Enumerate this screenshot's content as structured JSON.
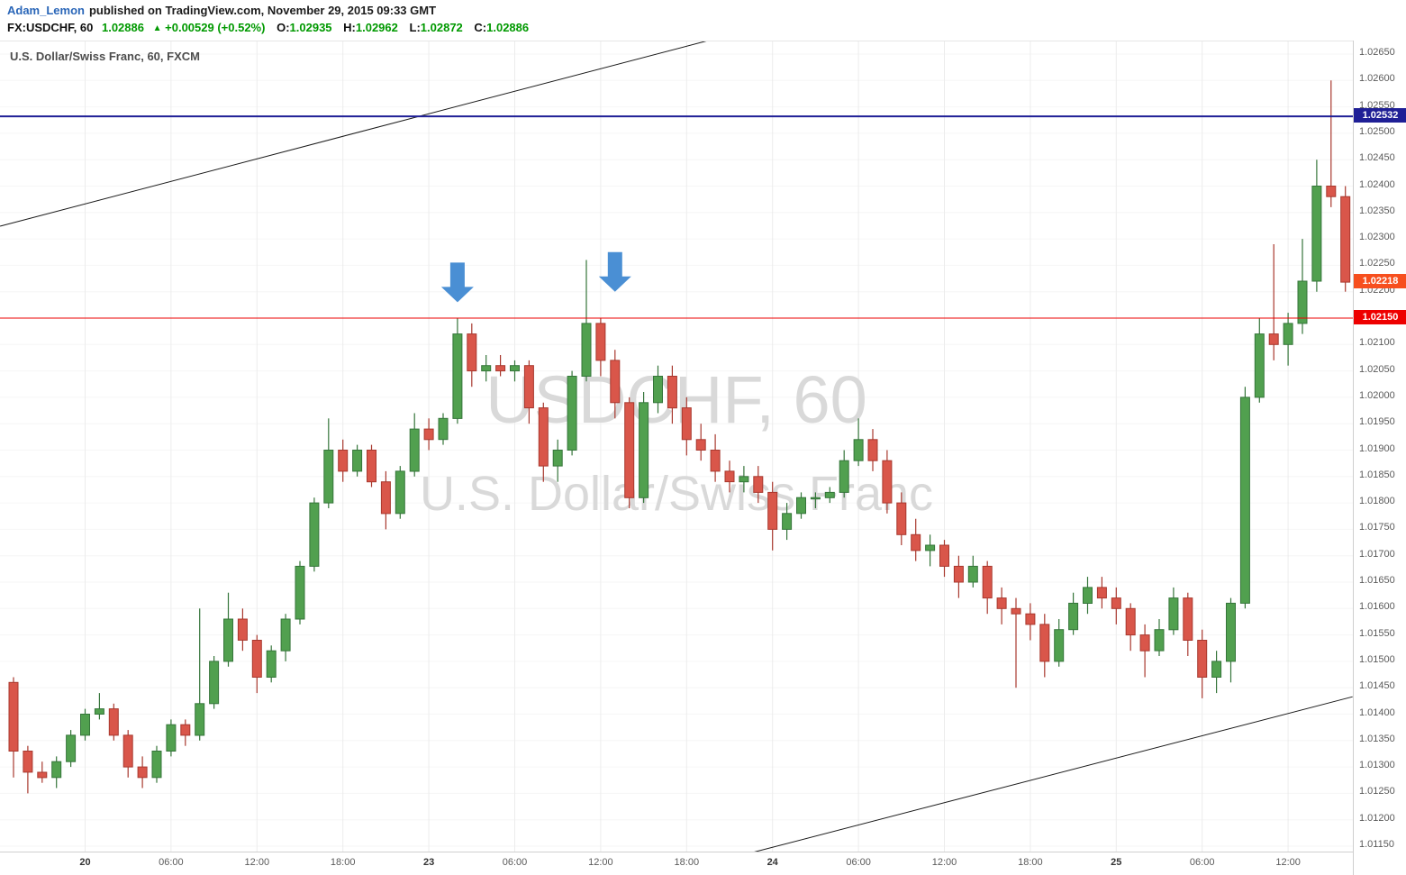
{
  "publish_bar": {
    "author": "Adam_Lemon",
    "suffix": "published on TradingView.com, November 29, 2015 09:33 GMT"
  },
  "quote_bar": {
    "symbol": "FX:USDCHF, 60",
    "last": "1.02886",
    "direction_icon": "▲",
    "change": "+0.00529 (+0.52%)",
    "ohlc": [
      {
        "label": "O:",
        "value": "1.02935"
      },
      {
        "label": "H:",
        "value": "1.02962"
      },
      {
        "label": "L:",
        "value": "1.02872"
      },
      {
        "label": "C:",
        "value": "1.02886"
      }
    ]
  },
  "chart": {
    "legend": "U.S. Dollar/Swiss Franc, 60, FXCM",
    "watermark_line1": "USDCHF, 60",
    "watermark_line2": "U.S. Dollar/Swiss Franc"
  },
  "chart_data": {
    "type": "candlestick",
    "symbol": "USDCHF",
    "timeframe_minutes": 60,
    "title": "U.S. Dollar/Swiss Franc, 60, FXCM",
    "y_axis": {
      "min": 1.0115,
      "max": 1.0265,
      "tick_step": 0.0005,
      "tick_labels": [
        "1.02650",
        "1.02600",
        "1.02550",
        "1.02500",
        "1.02450",
        "1.02400",
        "1.02350",
        "1.02300",
        "1.02250",
        "1.02200",
        "1.02150",
        "1.02100",
        "1.02050",
        "1.02000",
        "1.01950",
        "1.01900",
        "1.01850",
        "1.01800",
        "1.01750",
        "1.01700",
        "1.01650",
        "1.01600",
        "1.01550",
        "1.01500",
        "1.01450",
        "1.01400",
        "1.01350",
        "1.01300",
        "1.01250",
        "1.01200",
        "1.01150"
      ]
    },
    "x_ticks": [
      {
        "label": "20",
        "index": 5,
        "is_day": true
      },
      {
        "label": "06:00",
        "index": 11,
        "is_day": false
      },
      {
        "label": "12:00",
        "index": 17,
        "is_day": false
      },
      {
        "label": "18:00",
        "index": 23,
        "is_day": false
      },
      {
        "label": "23",
        "index": 29,
        "is_day": true
      },
      {
        "label": "06:00",
        "index": 35,
        "is_day": false
      },
      {
        "label": "12:00",
        "index": 41,
        "is_day": false
      },
      {
        "label": "18:00",
        "index": 47,
        "is_day": false
      },
      {
        "label": "24",
        "index": 53,
        "is_day": true
      },
      {
        "label": "06:00",
        "index": 59,
        "is_day": false
      },
      {
        "label": "12:00",
        "index": 65,
        "is_day": false
      },
      {
        "label": "18:00",
        "index": 71,
        "is_day": false
      },
      {
        "label": "25",
        "index": 77,
        "is_day": true
      },
      {
        "label": "06:00",
        "index": 83,
        "is_day": false
      },
      {
        "label": "12:00",
        "index": 89,
        "is_day": false
      }
    ],
    "candles": [
      [
        1.0146,
        1.0147,
        1.0128,
        1.0133
      ],
      [
        1.0133,
        1.0134,
        1.0125,
        1.0129
      ],
      [
        1.0129,
        1.0131,
        1.0127,
        1.0128
      ],
      [
        1.0128,
        1.0132,
        1.0126,
        1.0131
      ],
      [
        1.0131,
        1.0137,
        1.013,
        1.0136
      ],
      [
        1.0136,
        1.0141,
        1.0135,
        1.014
      ],
      [
        1.014,
        1.0144,
        1.0139,
        1.0141
      ],
      [
        1.0141,
        1.0142,
        1.0135,
        1.0136
      ],
      [
        1.0136,
        1.0137,
        1.0128,
        1.013
      ],
      [
        1.013,
        1.0132,
        1.0126,
        1.0128
      ],
      [
        1.0128,
        1.0134,
        1.0127,
        1.0133
      ],
      [
        1.0133,
        1.0139,
        1.0132,
        1.0138
      ],
      [
        1.0138,
        1.0139,
        1.0134,
        1.0136
      ],
      [
        1.0136,
        1.016,
        1.0135,
        1.0142
      ],
      [
        1.0142,
        1.0151,
        1.0141,
        1.015
      ],
      [
        1.015,
        1.0163,
        1.0149,
        1.0158
      ],
      [
        1.0158,
        1.016,
        1.0152,
        1.0154
      ],
      [
        1.0154,
        1.0155,
        1.0144,
        1.0147
      ],
      [
        1.0147,
        1.0153,
        1.0146,
        1.0152
      ],
      [
        1.0152,
        1.0159,
        1.015,
        1.0158
      ],
      [
        1.0158,
        1.0169,
        1.0157,
        1.0168
      ],
      [
        1.0168,
        1.0181,
        1.0167,
        1.018
      ],
      [
        1.018,
        1.0196,
        1.0179,
        1.019
      ],
      [
        1.019,
        1.0192,
        1.0184,
        1.0186
      ],
      [
        1.0186,
        1.0191,
        1.0185,
        1.019
      ],
      [
        1.019,
        1.0191,
        1.0183,
        1.0184
      ],
      [
        1.0184,
        1.0186,
        1.0175,
        1.0178
      ],
      [
        1.0178,
        1.0187,
        1.0177,
        1.0186
      ],
      [
        1.0186,
        1.0197,
        1.0185,
        1.0194
      ],
      [
        1.0194,
        1.0196,
        1.019,
        1.0192
      ],
      [
        1.0192,
        1.0197,
        1.0191,
        1.0196
      ],
      [
        1.0196,
        1.0215,
        1.0195,
        1.0212
      ],
      [
        1.0212,
        1.0214,
        1.0202,
        1.0205
      ],
      [
        1.0205,
        1.0208,
        1.0203,
        1.0206
      ],
      [
        1.0206,
        1.0208,
        1.0204,
        1.0205
      ],
      [
        1.0205,
        1.0207,
        1.0203,
        1.0206
      ],
      [
        1.0206,
        1.0207,
        1.0195,
        1.0198
      ],
      [
        1.0198,
        1.0199,
        1.0184,
        1.0187
      ],
      [
        1.0187,
        1.0192,
        1.0184,
        1.019
      ],
      [
        1.019,
        1.0205,
        1.0189,
        1.0204
      ],
      [
        1.0204,
        1.0226,
        1.0203,
        1.0214
      ],
      [
        1.0214,
        1.0215,
        1.0204,
        1.0207
      ],
      [
        1.0207,
        1.0209,
        1.0196,
        1.0199
      ],
      [
        1.0199,
        1.02,
        1.0179,
        1.0181
      ],
      [
        1.0181,
        1.0201,
        1.018,
        1.0199
      ],
      [
        1.0199,
        1.0206,
        1.0197,
        1.0204
      ],
      [
        1.0204,
        1.0206,
        1.0195,
        1.0198
      ],
      [
        1.0198,
        1.02,
        1.0189,
        1.0192
      ],
      [
        1.0192,
        1.0195,
        1.0188,
        1.019
      ],
      [
        1.019,
        1.0193,
        1.0184,
        1.0186
      ],
      [
        1.0186,
        1.0188,
        1.0182,
        1.0184
      ],
      [
        1.0184,
        1.0187,
        1.0182,
        1.0185
      ],
      [
        1.0185,
        1.0187,
        1.018,
        1.0182
      ],
      [
        1.0182,
        1.0184,
        1.0171,
        1.0175
      ],
      [
        1.0175,
        1.018,
        1.0173,
        1.0178
      ],
      [
        1.0178,
        1.0182,
        1.0177,
        1.0181
      ],
      [
        1.0181,
        1.0182,
        1.0179,
        1.0181
      ],
      [
        1.0181,
        1.0183,
        1.018,
        1.0182
      ],
      [
        1.0182,
        1.019,
        1.0181,
        1.0188
      ],
      [
        1.0188,
        1.0196,
        1.0187,
        1.0192
      ],
      [
        1.0192,
        1.0194,
        1.0186,
        1.0188
      ],
      [
        1.0188,
        1.019,
        1.0178,
        1.018
      ],
      [
        1.018,
        1.0182,
        1.0172,
        1.0174
      ],
      [
        1.0174,
        1.0177,
        1.0169,
        1.0171
      ],
      [
        1.0171,
        1.0174,
        1.0168,
        1.0172
      ],
      [
        1.0172,
        1.0173,
        1.0166,
        1.0168
      ],
      [
        1.0168,
        1.017,
        1.0162,
        1.0165
      ],
      [
        1.0165,
        1.017,
        1.0164,
        1.0168
      ],
      [
        1.0168,
        1.0169,
        1.0159,
        1.0162
      ],
      [
        1.0162,
        1.0164,
        1.0157,
        1.016
      ],
      [
        1.016,
        1.0162,
        1.0145,
        1.0159
      ],
      [
        1.0159,
        1.0161,
        1.0154,
        1.0157
      ],
      [
        1.0157,
        1.0159,
        1.0147,
        1.015
      ],
      [
        1.015,
        1.0158,
        1.0149,
        1.0156
      ],
      [
        1.0156,
        1.0163,
        1.0155,
        1.0161
      ],
      [
        1.0161,
        1.0166,
        1.0159,
        1.0164
      ],
      [
        1.0164,
        1.0166,
        1.016,
        1.0162
      ],
      [
        1.0162,
        1.0164,
        1.0157,
        1.016
      ],
      [
        1.016,
        1.0161,
        1.0152,
        1.0155
      ],
      [
        1.0155,
        1.0157,
        1.0147,
        1.0152
      ],
      [
        1.0152,
        1.0158,
        1.0151,
        1.0156
      ],
      [
        1.0156,
        1.0164,
        1.0155,
        1.0162
      ],
      [
        1.0162,
        1.0163,
        1.0151,
        1.0154
      ],
      [
        1.0154,
        1.0156,
        1.0143,
        1.0147
      ],
      [
        1.0147,
        1.0152,
        1.0144,
        1.015
      ],
      [
        1.015,
        1.0162,
        1.0146,
        1.0161
      ],
      [
        1.0161,
        1.0202,
        1.016,
        1.02
      ],
      [
        1.02,
        1.0215,
        1.0199,
        1.0212
      ],
      [
        1.0212,
        1.0229,
        1.0207,
        1.021
      ],
      [
        1.021,
        1.0216,
        1.0206,
        1.0214
      ],
      [
        1.0214,
        1.023,
        1.0212,
        1.0222
      ],
      [
        1.0222,
        1.0245,
        1.022,
        1.024
      ],
      [
        1.024,
        1.026,
        1.0236,
        1.0238
      ],
      [
        1.0238,
        1.024,
        1.022,
        1.02218
      ]
    ],
    "colors": {
      "up_fill": "#51a04f",
      "up_border": "#35753a",
      "down_fill": "#d9564a",
      "down_border": "#a8382e",
      "grid_h": "#f6f6f6",
      "grid_v": "#ececec",
      "trend_line": "#1a1a1a",
      "watermark": "#d9d9d9",
      "arrow": "#4a8fd4"
    },
    "horizontal_lines": [
      {
        "price": 1.02532,
        "label": "1.02532",
        "color": "#1f1f96",
        "width": 2
      },
      {
        "price": 1.0215,
        "label": "1.02150",
        "color": "#ee0000",
        "width": 1
      }
    ],
    "last_price_label": {
      "price": 1.02218,
      "label": "1.02218",
      "color": "#f74f1e"
    },
    "trend_lines": [
      {
        "i1": -0.94,
        "p1": 1.02324,
        "i2": 48.7,
        "p2": 1.02677
      },
      {
        "i1": 51.6,
        "p1": 1.01138,
        "i2": 93.5,
        "p2": 1.01433
      }
    ],
    "arrows": [
      {
        "index": 31,
        "tip_price": 1.0218
      },
      {
        "index": 42,
        "tip_price": 1.022
      }
    ],
    "legend_position": "top-left",
    "grid": true
  }
}
